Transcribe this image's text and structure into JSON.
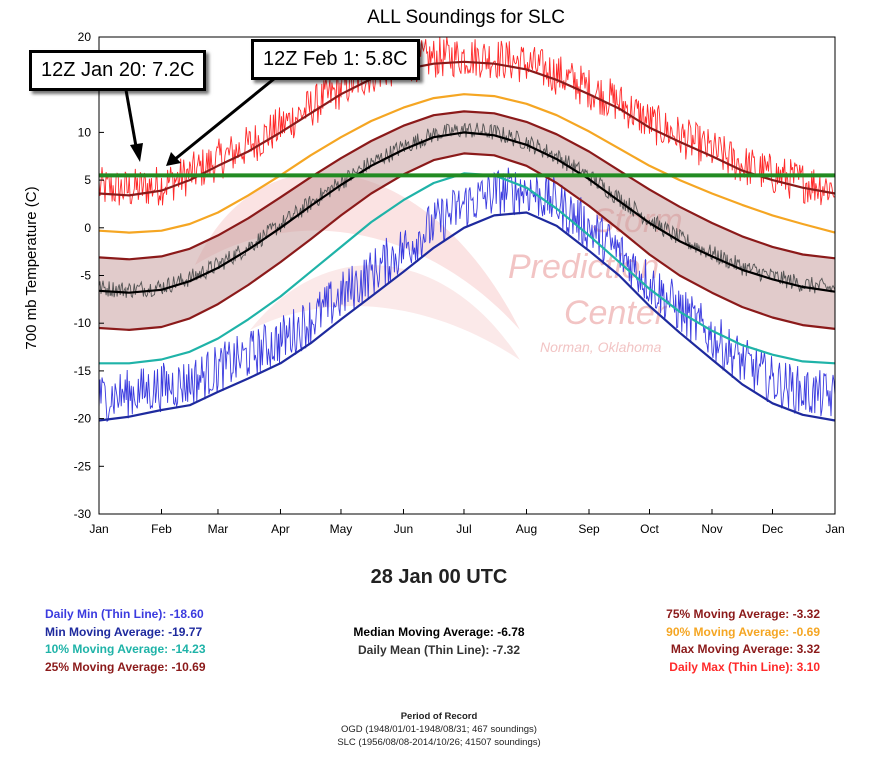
{
  "chart_data": {
    "type": "line",
    "title": "ALL Soundings for SLC",
    "ylabel": "700 mb Temperature (C)",
    "ylim": [
      -30,
      20
    ],
    "yticks": [
      20,
      15,
      10,
      5,
      0,
      -5,
      -10,
      -15,
      -20,
      -25,
      -30
    ],
    "xticks": [
      "Jan",
      "Feb",
      "Mar",
      "Apr",
      "May",
      "Jun",
      "Jul",
      "Aug",
      "Sep",
      "Oct",
      "Nov",
      "Dec",
      "Jan"
    ],
    "x": [
      0,
      15,
      31,
      45,
      59,
      74,
      90,
      105,
      120,
      135,
      151,
      166,
      181,
      196,
      212,
      227,
      243,
      258,
      273,
      288,
      304,
      319,
      334,
      349,
      365
    ],
    "series": [
      {
        "name": "Max Moving Average",
        "color": "#8b1a1a",
        "values": [
          3.6,
          3.4,
          3.9,
          5.0,
          6.5,
          8.0,
          10.0,
          12.0,
          14.0,
          15.6,
          16.6,
          17.2,
          17.4,
          17.2,
          16.6,
          15.5,
          14.0,
          12.5,
          10.5,
          9.0,
          7.5,
          6.0,
          5.0,
          4.2,
          3.6
        ]
      },
      {
        "name": "90% Moving Average",
        "color": "#f5a623",
        "values": [
          -0.3,
          -0.5,
          -0.3,
          0.4,
          1.6,
          3.4,
          5.5,
          7.6,
          9.5,
          11.2,
          12.6,
          13.6,
          14.0,
          13.8,
          13.0,
          11.8,
          10.1,
          8.3,
          6.5,
          5.0,
          3.6,
          2.4,
          1.3,
          0.4,
          -0.5
        ]
      },
      {
        "name": "75% Moving Average",
        "color": "#8b1a1a",
        "values": [
          -3.1,
          -3.3,
          -3.0,
          -2.2,
          -0.8,
          1.0,
          3.2,
          5.3,
          7.3,
          9.1,
          10.7,
          11.8,
          12.2,
          12.0,
          11.1,
          9.8,
          8.0,
          6.0,
          4.0,
          2.2,
          0.5,
          -0.9,
          -2.0,
          -2.8,
          -3.2
        ]
      },
      {
        "name": "Median Moving Average",
        "color": "#000000",
        "values": [
          -6.6,
          -6.8,
          -6.5,
          -5.6,
          -4.2,
          -2.3,
          0.0,
          2.3,
          4.5,
          6.5,
          8.2,
          9.5,
          10.0,
          9.7,
          8.7,
          7.2,
          5.1,
          2.8,
          0.5,
          -1.4,
          -3.0,
          -4.4,
          -5.4,
          -6.2,
          -6.7
        ]
      },
      {
        "name": "25% Moving Average",
        "color": "#8b1a1a",
        "values": [
          -10.5,
          -10.7,
          -10.4,
          -9.5,
          -8.0,
          -6.0,
          -3.6,
          -1.2,
          1.3,
          3.6,
          5.6,
          7.1,
          7.8,
          7.6,
          6.5,
          4.7,
          2.3,
          -0.2,
          -2.8,
          -5.0,
          -6.8,
          -8.3,
          -9.4,
          -10.2,
          -10.6
        ]
      },
      {
        "name": "10% Moving Average",
        "color": "#1fb3a8",
        "values": [
          -14.2,
          -14.2,
          -13.8,
          -13.0,
          -11.6,
          -9.6,
          -7.2,
          -4.6,
          -2.0,
          0.6,
          2.9,
          4.7,
          5.7,
          5.5,
          4.2,
          2.0,
          -0.8,
          -3.6,
          -6.4,
          -8.8,
          -10.8,
          -12.3,
          -13.3,
          -14.0,
          -14.2
        ]
      },
      {
        "name": "Min Moving Average",
        "color": "#1e2a9e",
        "values": [
          -20.2,
          -19.8,
          -19.1,
          -18.6,
          -17.2,
          -15.8,
          -14.2,
          -12.1,
          -9.6,
          -7.2,
          -4.6,
          -2.1,
          0.0,
          1.3,
          1.6,
          0.2,
          -2.4,
          -5.0,
          -8.2,
          -11.0,
          -13.8,
          -16.4,
          -18.4,
          -19.6,
          -20.2
        ]
      }
    ],
    "threshold_line": {
      "value": 5.5,
      "color": "#228b22"
    },
    "annotations": [
      "12Z Jan 20: 7.2C",
      "12Z Feb 1: 5.8C"
    ],
    "colors": {
      "daily_max": "#ff2a2a",
      "daily_min": "#3b3bdf",
      "daily_mean": "#555555",
      "band_fill": "#c9a0a0"
    },
    "grid": false
  },
  "watermark": {
    "line1": "Storm",
    "line2": "Prediction",
    "line3": "Center",
    "line4": "Norman, Oklahoma"
  },
  "current_time": "28 Jan 00 UTC",
  "legend": {
    "left": [
      {
        "label": "Daily Min (Thin Line): -18.60",
        "color": "#3b3bdf"
      },
      {
        "label": "Min Moving Average: -19.77",
        "color": "#1e2a9e"
      },
      {
        "label": "10% Moving Average: -14.23",
        "color": "#1fb3a8"
      },
      {
        "label": "25% Moving Average: -10.69",
        "color": "#8b1a1a"
      }
    ],
    "center": [
      {
        "label": "Median Moving Average: -6.78",
        "color": "#000000"
      },
      {
        "label": "Daily Mean (Thin Line): -7.32",
        "color": "#333333"
      }
    ],
    "right": [
      {
        "label": "75% Moving Average: -3.32",
        "color": "#8b1a1a"
      },
      {
        "label": "90% Moving Average: -0.69",
        "color": "#f5a623"
      },
      {
        "label": "Max Moving Average: 3.32",
        "color": "#8b1a1a"
      },
      {
        "label": "Daily Max (Thin Line): 3.10",
        "color": "#ff2a2a"
      }
    ]
  },
  "period": {
    "title": "Period of Record",
    "line1": "OGD (1948/01/01-1948/08/31; 467 soundings)",
    "line2": "SLC (1956/08/08-2014/10/26; 41507 soundings)"
  }
}
